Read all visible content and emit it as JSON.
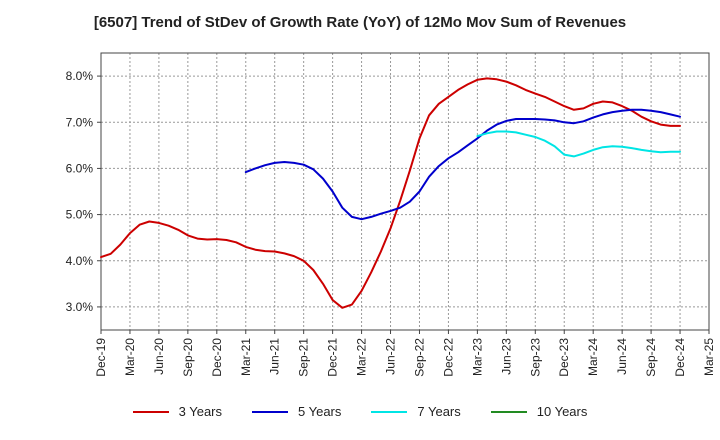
{
  "chart_data": {
    "type": "line",
    "title": "[6507]  Trend of StDev of Growth Rate (YoY) of 12Mo Mov Sum of Revenues",
    "xlabel": "",
    "ylabel": "",
    "ylim": [
      2.5,
      8.5
    ],
    "yticks": [
      3.0,
      4.0,
      5.0,
      6.0,
      7.0,
      8.0
    ],
    "ytick_labels": [
      "3.0%",
      "4.0%",
      "5.0%",
      "6.0%",
      "7.0%",
      "8.0%"
    ],
    "x_start": "Dec-19",
    "x_tick_labels": [
      "Dec-19",
      "Mar-20",
      "Jun-20",
      "Sep-20",
      "Dec-20",
      "Mar-21",
      "Jun-21",
      "Sep-21",
      "Dec-21",
      "Mar-22",
      "Jun-22",
      "Sep-22",
      "Dec-22",
      "Mar-23",
      "Jun-23",
      "Sep-23",
      "Dec-23",
      "Mar-24",
      "Jun-24",
      "Sep-24",
      "Dec-24",
      "Mar-25"
    ],
    "grid": true,
    "legend_position": "bottom",
    "series": [
      {
        "name": "3 Years",
        "color": "#cc0000",
        "start_index": 0,
        "values": [
          4.08,
          4.15,
          4.35,
          4.6,
          4.78,
          4.85,
          4.82,
          4.76,
          4.67,
          4.55,
          4.48,
          4.46,
          4.47,
          4.45,
          4.4,
          4.3,
          4.24,
          4.21,
          4.2,
          4.16,
          4.1,
          4.0,
          3.8,
          3.5,
          3.15,
          2.98,
          3.05,
          3.35,
          3.75,
          4.2,
          4.7,
          5.3,
          5.95,
          6.65,
          7.15,
          7.4,
          7.55,
          7.7,
          7.82,
          7.92,
          7.95,
          7.93,
          7.88,
          7.8,
          7.7,
          7.62,
          7.55,
          7.45,
          7.35,
          7.27,
          7.3,
          7.4,
          7.45,
          7.43,
          7.35,
          7.25,
          7.12,
          7.02,
          6.95,
          6.92,
          6.92
        ]
      },
      {
        "name": "5 Years",
        "color": "#0000cc",
        "start_index": 15,
        "values": [
          5.92,
          6.0,
          6.07,
          6.12,
          6.14,
          6.12,
          6.08,
          5.98,
          5.78,
          5.5,
          5.15,
          4.95,
          4.9,
          4.95,
          5.02,
          5.08,
          5.15,
          5.28,
          5.5,
          5.82,
          6.05,
          6.22,
          6.35,
          6.5,
          6.65,
          6.82,
          6.95,
          7.03,
          7.07,
          7.07,
          7.07,
          7.06,
          7.04,
          7.0,
          6.98,
          7.02,
          7.1,
          7.17,
          7.22,
          7.25,
          7.27,
          7.27,
          7.25,
          7.22,
          7.17,
          7.12
        ]
      },
      {
        "name": "7 Years",
        "color": "#00e5e5",
        "start_index": 39,
        "values": [
          6.7,
          6.76,
          6.8,
          6.8,
          6.78,
          6.73,
          6.68,
          6.6,
          6.48,
          6.3,
          6.26,
          6.32,
          6.4,
          6.46,
          6.48,
          6.47,
          6.44,
          6.4,
          6.37,
          6.35,
          6.36,
          6.36
        ]
      },
      {
        "name": "10 Years",
        "color": "#228b22",
        "start_index": 0,
        "values": []
      }
    ]
  }
}
